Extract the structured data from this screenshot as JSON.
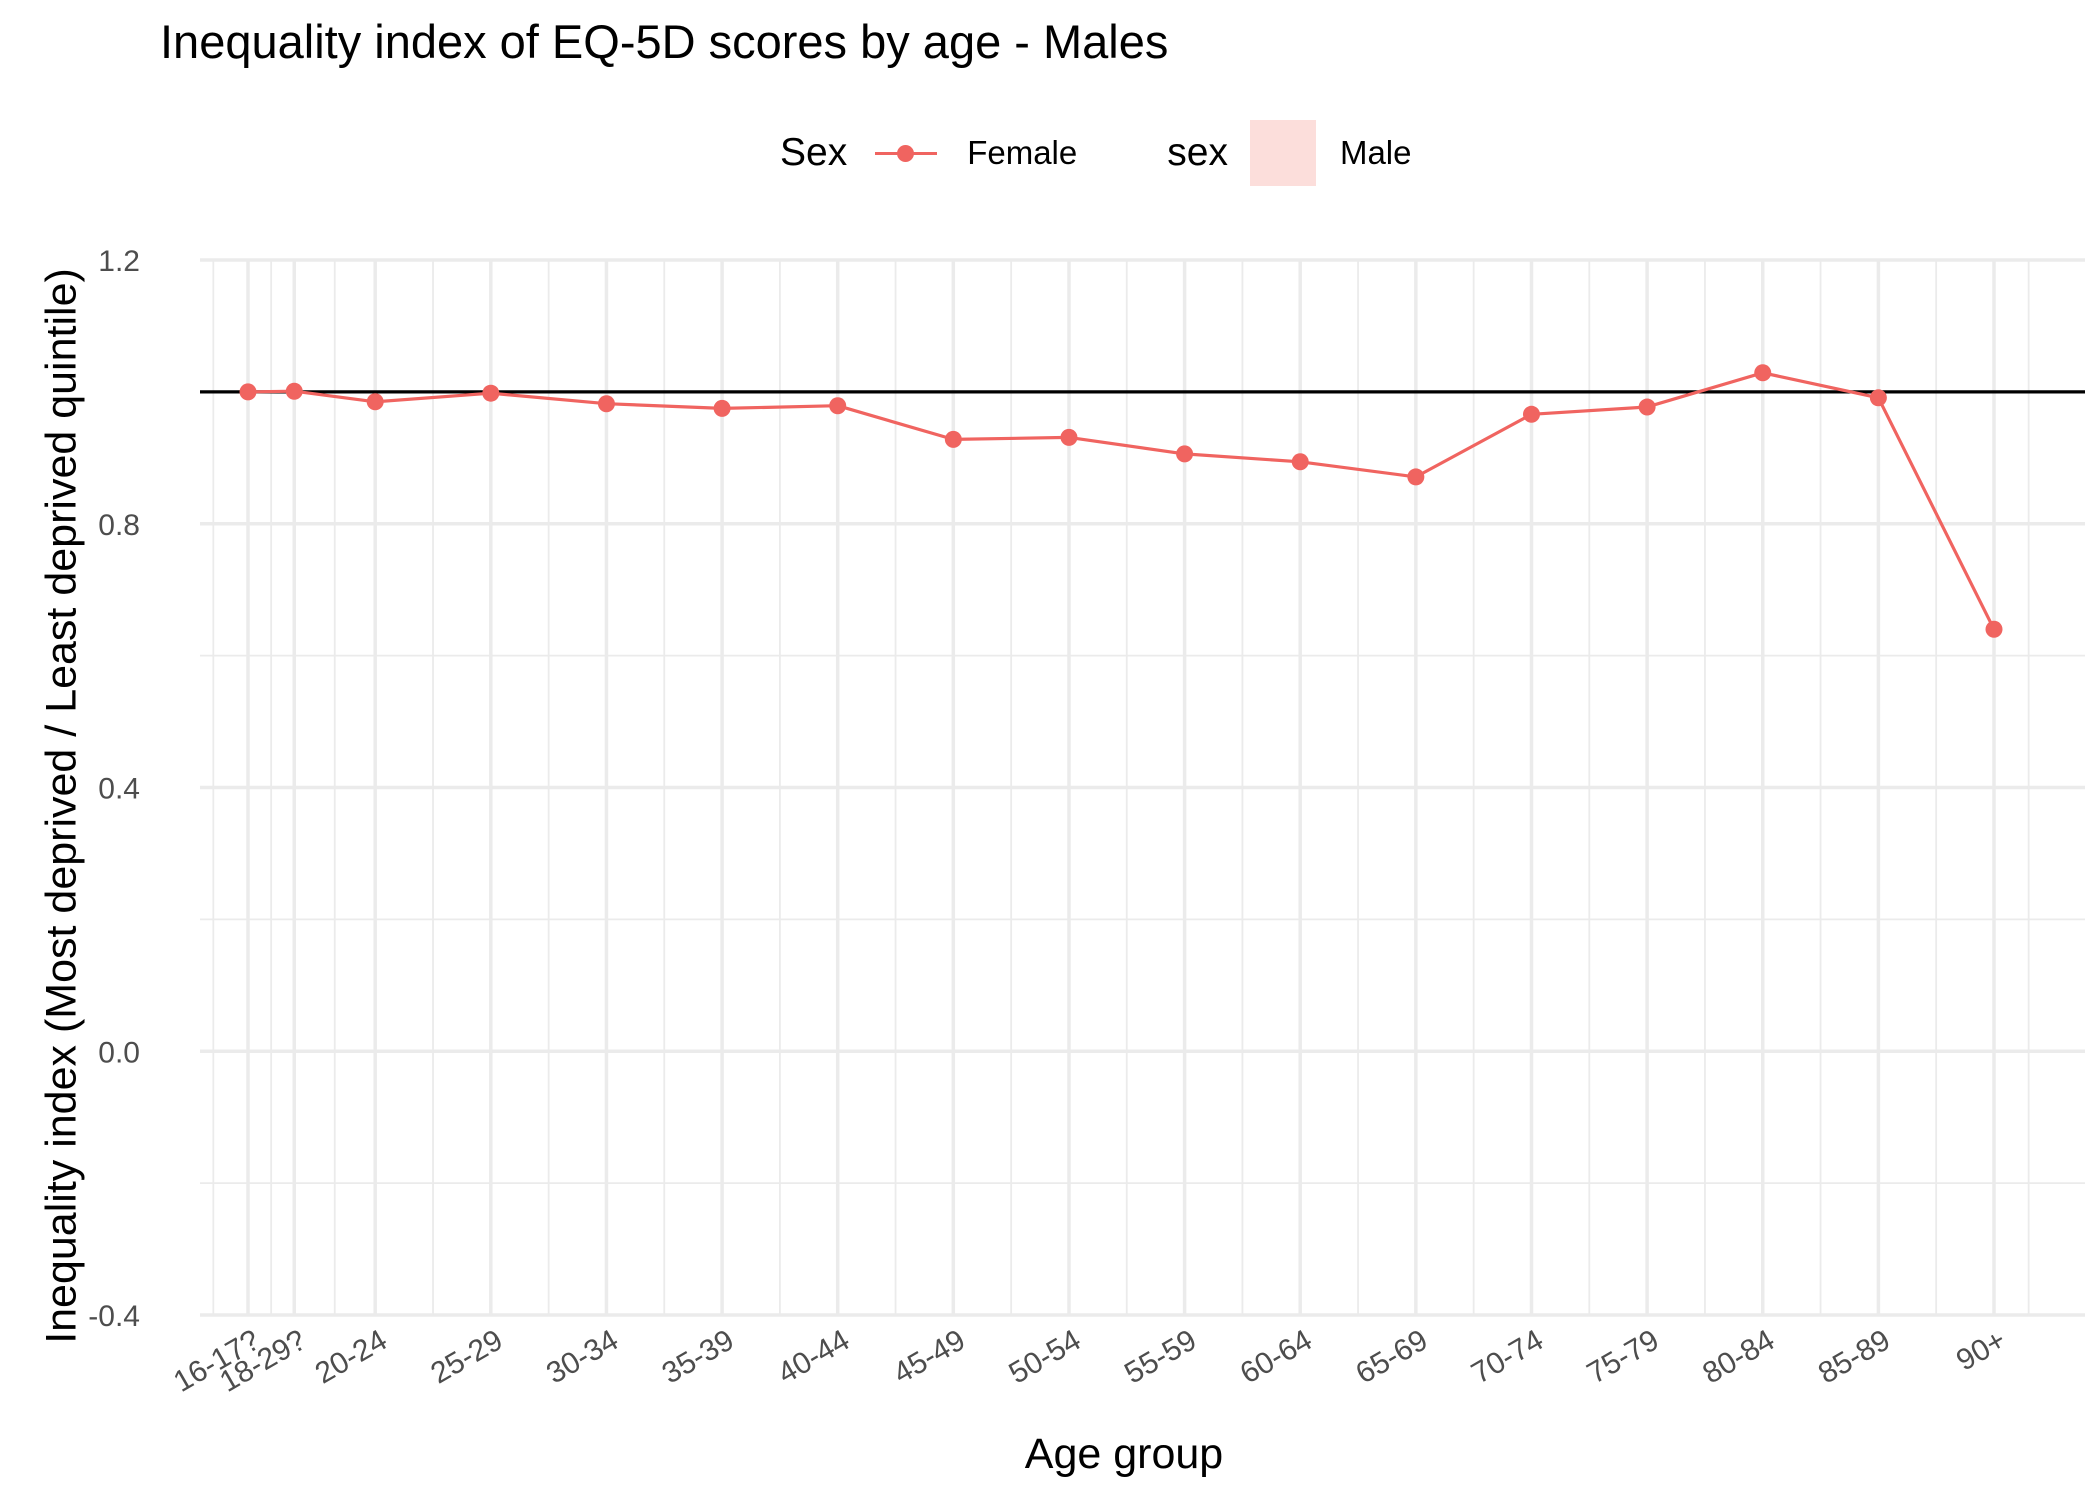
{
  "chart_data": {
    "type": "line",
    "title": "Inequality index of EQ-5D scores by age - Males",
    "xlabel": "Age group",
    "ylabel": "Inequality index (Most deprived / Least deprived quintile)",
    "categories": [
      "16-17?",
      "18-29?",
      "20-24",
      "25-29",
      "30-34",
      "35-39",
      "40-44",
      "45-49",
      "50-54",
      "55-59",
      "60-64",
      "65-69",
      "70-74",
      "75-79",
      "80-84",
      "85-89",
      "90+"
    ],
    "series": [
      {
        "name": "Female",
        "color": "#f06460",
        "values": [
          1.0,
          1.001,
          0.985,
          0.998,
          0.982,
          0.975,
          0.979,
          0.928,
          0.931,
          0.906,
          0.894,
          0.871,
          0.966,
          0.977,
          1.029,
          0.991,
          0.64
        ]
      }
    ],
    "reference_line": {
      "y": 1.0,
      "color": "#000000"
    },
    "ylim": [
      -0.4,
      1.2
    ],
    "yticks": [
      "1.2",
      "0.8",
      "0.4",
      "0.0",
      "-0.4"
    ],
    "grid": true,
    "legend": {
      "position": "top",
      "groups": [
        {
          "title": "Sex",
          "label": "Female",
          "key": "line-point",
          "color": "#f06460"
        },
        {
          "title": "sex",
          "label": "Male",
          "key": "fill",
          "color": "#fcdedb"
        }
      ]
    }
  }
}
